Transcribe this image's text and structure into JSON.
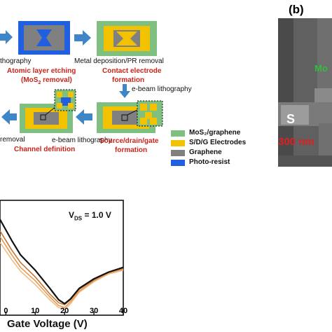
{
  "panel_b_label": "(b)",
  "process": {
    "step_captions": {
      "litho1": "thography",
      "metal": "Metal deposition/PR  removal",
      "ale": "Atomic layer etching",
      "ale_sub": "(MoS",
      "ale_sub2": "2",
      "ale_sub3": " removal)",
      "contact": "Contact electrode",
      "contact2": "formation",
      "ebeam1": "e-beam lithography",
      "ebeam2": "e-beam lithography",
      "removal": "removal",
      "channel": "Channel definition",
      "sdg": "Source/drain/gate",
      "sdg2": "formation"
    },
    "legend": [
      {
        "label": "MoS₂/graphene",
        "color": "#7fbf7f"
      },
      {
        "label": "S/D/G Electrodes",
        "color": "#f2c200"
      },
      {
        "label": "Graphene",
        "color": "#808080"
      },
      {
        "label": "Photo-resist",
        "color": "#1f5fe0"
      }
    ]
  },
  "sem": {
    "label_s": "S",
    "label_mo": "Mo",
    "scale": "300 nm"
  },
  "chart_data": {
    "type": "line",
    "annotation": "V_DS = 1.0 V",
    "annotation_main": "V",
    "annotation_sub": "DS",
    "annotation_value": " = 1.0 V",
    "xlabel": "Gate Voltage (V)",
    "xlim": [
      -2,
      40
    ],
    "x_ticks": [
      0,
      10,
      20,
      30,
      40
    ],
    "x_tick_labels": [
      "0",
      "10",
      "20",
      "30",
      "40"
    ],
    "series": [
      {
        "color": "#111111",
        "x": [
          -2,
          2,
          5,
          10,
          15,
          18,
          20,
          22,
          25,
          30,
          35,
          40
        ],
        "y": [
          1.0,
          0.78,
          0.63,
          0.47,
          0.28,
          0.16,
          0.12,
          0.17,
          0.28,
          0.38,
          0.45,
          0.5
        ]
      },
      {
        "color": "#c87533",
        "x": [
          -2,
          2,
          5,
          10,
          15,
          18,
          20,
          22,
          25,
          30,
          35,
          40
        ],
        "y": [
          0.88,
          0.68,
          0.55,
          0.4,
          0.22,
          0.13,
          0.11,
          0.16,
          0.27,
          0.37,
          0.45,
          0.49
        ]
      },
      {
        "color": "#e39a55",
        "x": [
          -2,
          2,
          5,
          10,
          15,
          18,
          20,
          22,
          25,
          30,
          35,
          40
        ],
        "y": [
          0.82,
          0.63,
          0.5,
          0.36,
          0.19,
          0.1,
          0.08,
          0.14,
          0.25,
          0.36,
          0.44,
          0.48
        ]
      },
      {
        "color": "#f0bd86",
        "x": [
          -2,
          2,
          5,
          10,
          15,
          18,
          20,
          22,
          25,
          30,
          35,
          40
        ],
        "y": [
          0.76,
          0.58,
          0.46,
          0.32,
          0.16,
          0.08,
          0.06,
          0.12,
          0.24,
          0.35,
          0.43,
          0.47
        ]
      }
    ],
    "ylim": [
      0,
      1.2
    ]
  }
}
